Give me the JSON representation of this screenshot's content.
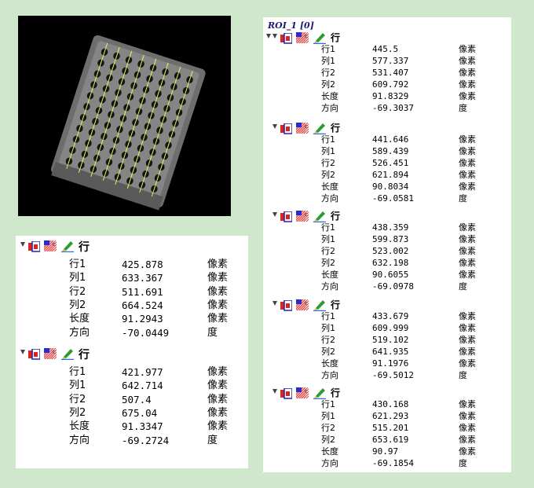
{
  "roi_title": "ROI_1 [0]",
  "group_label": "行",
  "unit_pixel": "像素",
  "unit_degree": "度",
  "keys": [
    "行1",
    "列1",
    "行2",
    "列2",
    "长度",
    "方向"
  ],
  "right_groups": [
    {
      "values": [
        "445.5",
        "577.337",
        "531.407",
        "609.792",
        "91.8329",
        "-69.3037"
      ]
    },
    {
      "values": [
        "441.646",
        "589.439",
        "526.451",
        "621.894",
        "90.8034",
        "-69.0581"
      ]
    },
    {
      "values": [
        "438.359",
        "599.873",
        "523.002",
        "632.198",
        "90.6055",
        "-69.0978"
      ]
    },
    {
      "values": [
        "433.679",
        "609.999",
        "519.102",
        "641.935",
        "91.1976",
        "-69.5012"
      ]
    },
    {
      "values": [
        "430.168",
        "621.293",
        "515.201",
        "653.619",
        "90.97",
        "-69.1854"
      ]
    }
  ],
  "left_groups": [
    {
      "values": [
        "425.878",
        "633.367",
        "511.691",
        "664.524",
        "91.2943",
        "-70.0449"
      ]
    },
    {
      "values": [
        "421.977",
        "642.714",
        "507.4",
        "675.04",
        "91.3347",
        "-69.2724"
      ]
    }
  ],
  "icons": [
    "region-icon",
    "texture-icon",
    "pen-icon"
  ]
}
